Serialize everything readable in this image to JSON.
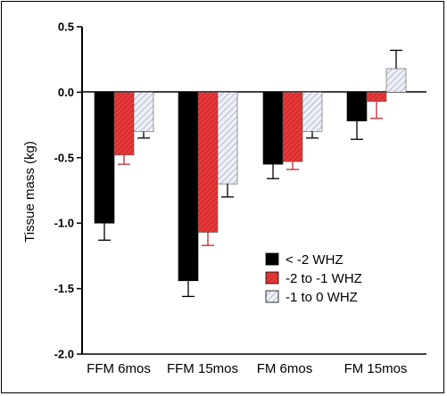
{
  "chart_data": {
    "type": "bar",
    "ylabel": "Tissue mass (kg)",
    "xlabel": "",
    "ylim": [
      -2.0,
      0.5
    ],
    "yticks": [
      0.5,
      0.0,
      -0.5,
      -1.0,
      -1.5,
      -2.0
    ],
    "ytick_labels": [
      "0.5",
      "0.0",
      "-0.5",
      "-1.0",
      "-1.5",
      "-2.0"
    ],
    "categories": [
      "FFM 6mos",
      "FFM 15mos",
      "FM 6mos",
      "FM 15mos"
    ],
    "series": [
      {
        "name": "< -2 WHZ",
        "values": [
          -1.0,
          -1.44,
          -0.55,
          -0.22
        ],
        "errors": [
          0.13,
          0.12,
          0.11,
          0.14
        ],
        "color": "#000000",
        "pattern": "solid"
      },
      {
        "name": "-2 to -1 WHZ",
        "values": [
          -0.48,
          -1.07,
          -0.53,
          -0.07
        ],
        "errors": [
          0.07,
          0.1,
          0.06,
          0.13
        ],
        "color": "#e03c3c",
        "pattern": "hatch-red"
      },
      {
        "name": "-1 to 0 WHZ",
        "values": [
          -0.3,
          -0.7,
          -0.3,
          0.18
        ],
        "errors": [
          0.05,
          0.1,
          0.05,
          0.14
        ],
        "color": "#c8cfe0",
        "pattern": "hatch-light"
      }
    ],
    "legend_position": "bottom-right",
    "grid": false
  }
}
